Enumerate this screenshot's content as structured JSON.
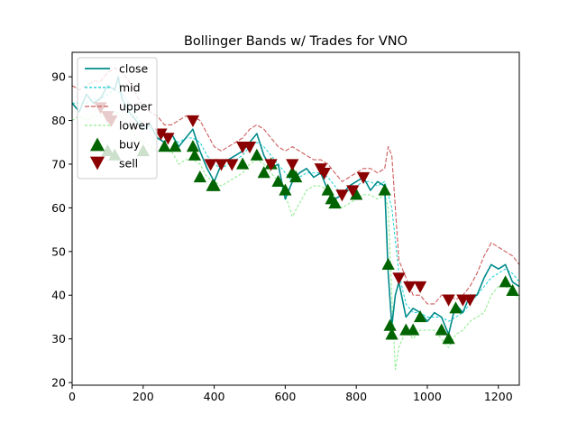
{
  "chart_data": {
    "type": "line",
    "title": "Bollinger Bands w/ Trades for VNO",
    "xlabel": "",
    "ylabel": "",
    "xlim": [
      0,
      1259
    ],
    "ylim": [
      19.4,
      95.6
    ],
    "xticks": [
      0,
      200,
      400,
      600,
      800,
      1000,
      1200
    ],
    "yticks": [
      20,
      30,
      40,
      50,
      60,
      70,
      80,
      90
    ],
    "legend_position": "upper-left",
    "grid": false,
    "series": [
      {
        "name": "close",
        "style": "solid",
        "color": "#008b8b",
        "x": [
          0,
          20,
          40,
          60,
          80,
          100,
          120,
          130,
          140,
          160,
          180,
          200,
          220,
          240,
          260,
          280,
          300,
          320,
          340,
          360,
          380,
          400,
          420,
          440,
          460,
          480,
          500,
          520,
          540,
          560,
          580,
          600,
          620,
          640,
          660,
          680,
          700,
          720,
          740,
          760,
          780,
          800,
          820,
          840,
          860,
          880,
          890,
          900,
          910,
          920,
          940,
          960,
          980,
          1000,
          1020,
          1040,
          1060,
          1080,
          1100,
          1120,
          1140,
          1160,
          1180,
          1200,
          1220,
          1240,
          1259
        ],
        "y": [
          84,
          82,
          86,
          84,
          85,
          88,
          87,
          90,
          85,
          82,
          80,
          78,
          79,
          76,
          75,
          77,
          74,
          76,
          78,
          73,
          69,
          66,
          70,
          71,
          72,
          73,
          75,
          77,
          72,
          69,
          70,
          62,
          66,
          68,
          69,
          67,
          68,
          64,
          62,
          63,
          65,
          66,
          67,
          64,
          66,
          65,
          45,
          33,
          40,
          43,
          35,
          37,
          36,
          34,
          36,
          35,
          31,
          38,
          36,
          40,
          40,
          44,
          47,
          46,
          47,
          43,
          42
        ]
      },
      {
        "name": "mid",
        "style": "dashed",
        "color": "#00ced1",
        "x": [
          0,
          20,
          40,
          60,
          80,
          100,
          120,
          140,
          160,
          180,
          200,
          220,
          240,
          260,
          280,
          300,
          320,
          340,
          360,
          380,
          400,
          420,
          440,
          460,
          480,
          500,
          520,
          540,
          560,
          580,
          600,
          620,
          640,
          660,
          680,
          700,
          720,
          740,
          760,
          780,
          800,
          820,
          840,
          860,
          880,
          900,
          920,
          940,
          960,
          980,
          1000,
          1020,
          1040,
          1060,
          1080,
          1100,
          1120,
          1140,
          1160,
          1180,
          1200,
          1220,
          1240,
          1259
        ],
        "y": [
          84,
          84,
          84,
          85,
          85,
          86,
          87,
          86,
          84,
          81,
          79,
          78,
          77,
          76,
          76,
          75,
          76,
          76,
          75,
          72,
          70,
          69,
          70,
          71,
          72,
          74,
          75,
          74,
          72,
          70,
          68,
          66,
          67,
          68,
          68,
          68,
          67,
          65,
          63,
          64,
          65,
          66,
          66,
          65,
          66,
          60,
          45,
          38,
          36,
          36,
          35,
          35,
          35,
          34,
          35,
          36,
          38,
          40,
          42,
          44,
          45,
          46,
          45,
          43
        ]
      },
      {
        "name": "upper",
        "style": "dashed",
        "color": "#cd5c5c",
        "x": [
          0,
          20,
          40,
          60,
          80,
          100,
          120,
          140,
          160,
          180,
          200,
          220,
          240,
          260,
          280,
          300,
          320,
          340,
          360,
          380,
          400,
          420,
          440,
          460,
          480,
          500,
          520,
          540,
          560,
          580,
          600,
          620,
          640,
          660,
          680,
          700,
          720,
          740,
          760,
          780,
          800,
          820,
          840,
          860,
          880,
          890,
          900,
          910,
          920,
          940,
          960,
          980,
          1000,
          1020,
          1040,
          1060,
          1080,
          1100,
          1120,
          1140,
          1160,
          1180,
          1200,
          1220,
          1240,
          1259
        ],
        "y": [
          88,
          87,
          88,
          89,
          89,
          91,
          92,
          91,
          89,
          86,
          83,
          82,
          81,
          79,
          79,
          80,
          81,
          81,
          80,
          77,
          74,
          73,
          74,
          75,
          76,
          78,
          79,
          78,
          76,
          74,
          73,
          74,
          73,
          72,
          71,
          71,
          70,
          68,
          66,
          67,
          68,
          69,
          69,
          68,
          69,
          74,
          72,
          60,
          48,
          44,
          40,
          40,
          38,
          38,
          40,
          40,
          39,
          40,
          42,
          45,
          49,
          52,
          51,
          50,
          49,
          47
        ]
      },
      {
        "name": "lower",
        "style": "dashed",
        "color": "#90ee90",
        "x": [
          0,
          20,
          40,
          60,
          80,
          100,
          120,
          140,
          160,
          180,
          200,
          220,
          240,
          260,
          280,
          300,
          320,
          340,
          360,
          380,
          400,
          420,
          440,
          460,
          480,
          500,
          520,
          540,
          560,
          580,
          600,
          620,
          640,
          660,
          680,
          700,
          720,
          740,
          760,
          780,
          800,
          820,
          840,
          860,
          880,
          890,
          900,
          910,
          920,
          940,
          960,
          980,
          1000,
          1020,
          1040,
          1060,
          1080,
          1100,
          1120,
          1140,
          1160,
          1180,
          1200,
          1220,
          1240,
          1259
        ],
        "y": [
          80,
          81,
          80,
          81,
          81,
          81,
          82,
          81,
          79,
          76,
          75,
          74,
          73,
          73,
          73,
          70,
          71,
          71,
          70,
          67,
          66,
          65,
          66,
          67,
          68,
          70,
          71,
          70,
          68,
          66,
          63,
          58,
          61,
          64,
          65,
          65,
          64,
          62,
          60,
          61,
          62,
          63,
          63,
          62,
          63,
          60,
          40,
          23,
          28,
          32,
          30,
          32,
          32,
          32,
          30,
          28,
          31,
          32,
          34,
          35,
          36,
          40,
          42,
          42,
          41,
          39
        ]
      }
    ],
    "buy": {
      "name": "buy",
      "color": "#006400",
      "points": [
        [
          100,
          73
        ],
        [
          120,
          72
        ],
        [
          200,
          73
        ],
        [
          260,
          74
        ],
        [
          290,
          74
        ],
        [
          340,
          74
        ],
        [
          345,
          72
        ],
        [
          360,
          67
        ],
        [
          395,
          65
        ],
        [
          400,
          65
        ],
        [
          480,
          70
        ],
        [
          520,
          72
        ],
        [
          540,
          68
        ],
        [
          560,
          70
        ],
        [
          580,
          66
        ],
        [
          600,
          64
        ],
        [
          620,
          68
        ],
        [
          630,
          67
        ],
        [
          720,
          64
        ],
        [
          730,
          62
        ],
        [
          740,
          61
        ],
        [
          800,
          63
        ],
        [
          880,
          64
        ],
        [
          890,
          47
        ],
        [
          895,
          33
        ],
        [
          900,
          31
        ],
        [
          940,
          32
        ],
        [
          960,
          32
        ],
        [
          980,
          35
        ],
        [
          1040,
          32
        ],
        [
          1060,
          30
        ],
        [
          1080,
          37
        ],
        [
          1220,
          43
        ],
        [
          1240,
          41
        ]
      ]
    },
    "sell": {
      "name": "sell",
      "color": "#8b0000",
      "points": [
        [
          80,
          83
        ],
        [
          100,
          81
        ],
        [
          110,
          80
        ],
        [
          250,
          77
        ],
        [
          270,
          76
        ],
        [
          340,
          80
        ],
        [
          390,
          70
        ],
        [
          420,
          70
        ],
        [
          450,
          70
        ],
        [
          480,
          74
        ],
        [
          500,
          74
        ],
        [
          560,
          70
        ],
        [
          620,
          70
        ],
        [
          700,
          69
        ],
        [
          710,
          68
        ],
        [
          760,
          63
        ],
        [
          790,
          64
        ],
        [
          820,
          67
        ],
        [
          920,
          44
        ],
        [
          950,
          42
        ],
        [
          980,
          42
        ],
        [
          1060,
          39
        ],
        [
          1100,
          39
        ],
        [
          1120,
          39
        ]
      ]
    }
  }
}
